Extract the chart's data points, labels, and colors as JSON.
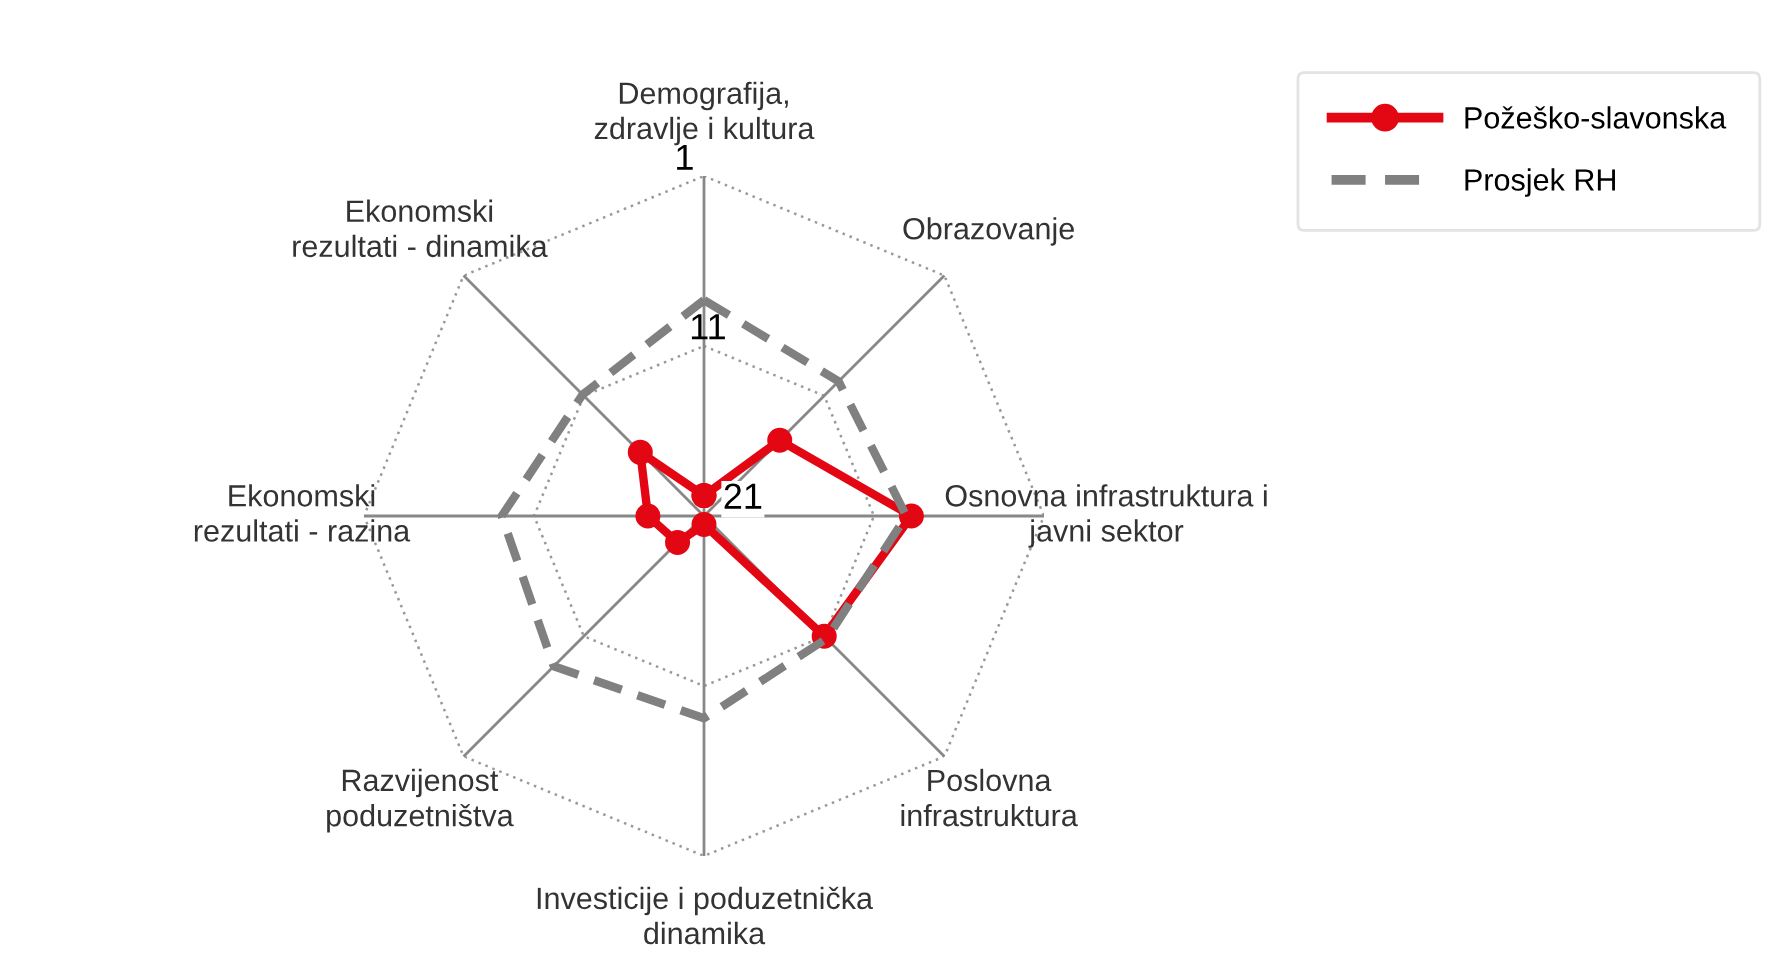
{
  "chart_data": {
    "type": "radar",
    "categories": [
      "Demografija,\nzdravlje i kultura",
      "Obrazovanje",
      "Osnovna infrastruktura i\njavni sektor",
      "Poslovna\ninfrastruktura",
      "Investicije i poduzetnička\ndinamika",
      "Razvijenost\npoduzetništva",
      "Ekonomski\nrezultati - razina",
      "Ekonomski\nrezultati - dinamika"
    ],
    "series": [
      {
        "name": "Požeško-slavonska",
        "color": "#e30613",
        "marker": "circle",
        "line_style": "solid",
        "values": [
          19.8,
          14.7,
          8.8,
          11.0,
          20.5,
          18.8,
          17.7,
          15.7
        ]
      },
      {
        "name": "Prosjek RH",
        "color": "#808080",
        "marker": "none",
        "line_style": "dashed",
        "values": [
          8.3,
          9.8,
          9.1,
          10.8,
          9.1,
          8.5,
          9.1,
          10.9
        ]
      }
    ],
    "ylim": [
      21,
      1
    ],
    "yticks": [
      1,
      11,
      21
    ],
    "grid": true,
    "legend": "top right"
  }
}
